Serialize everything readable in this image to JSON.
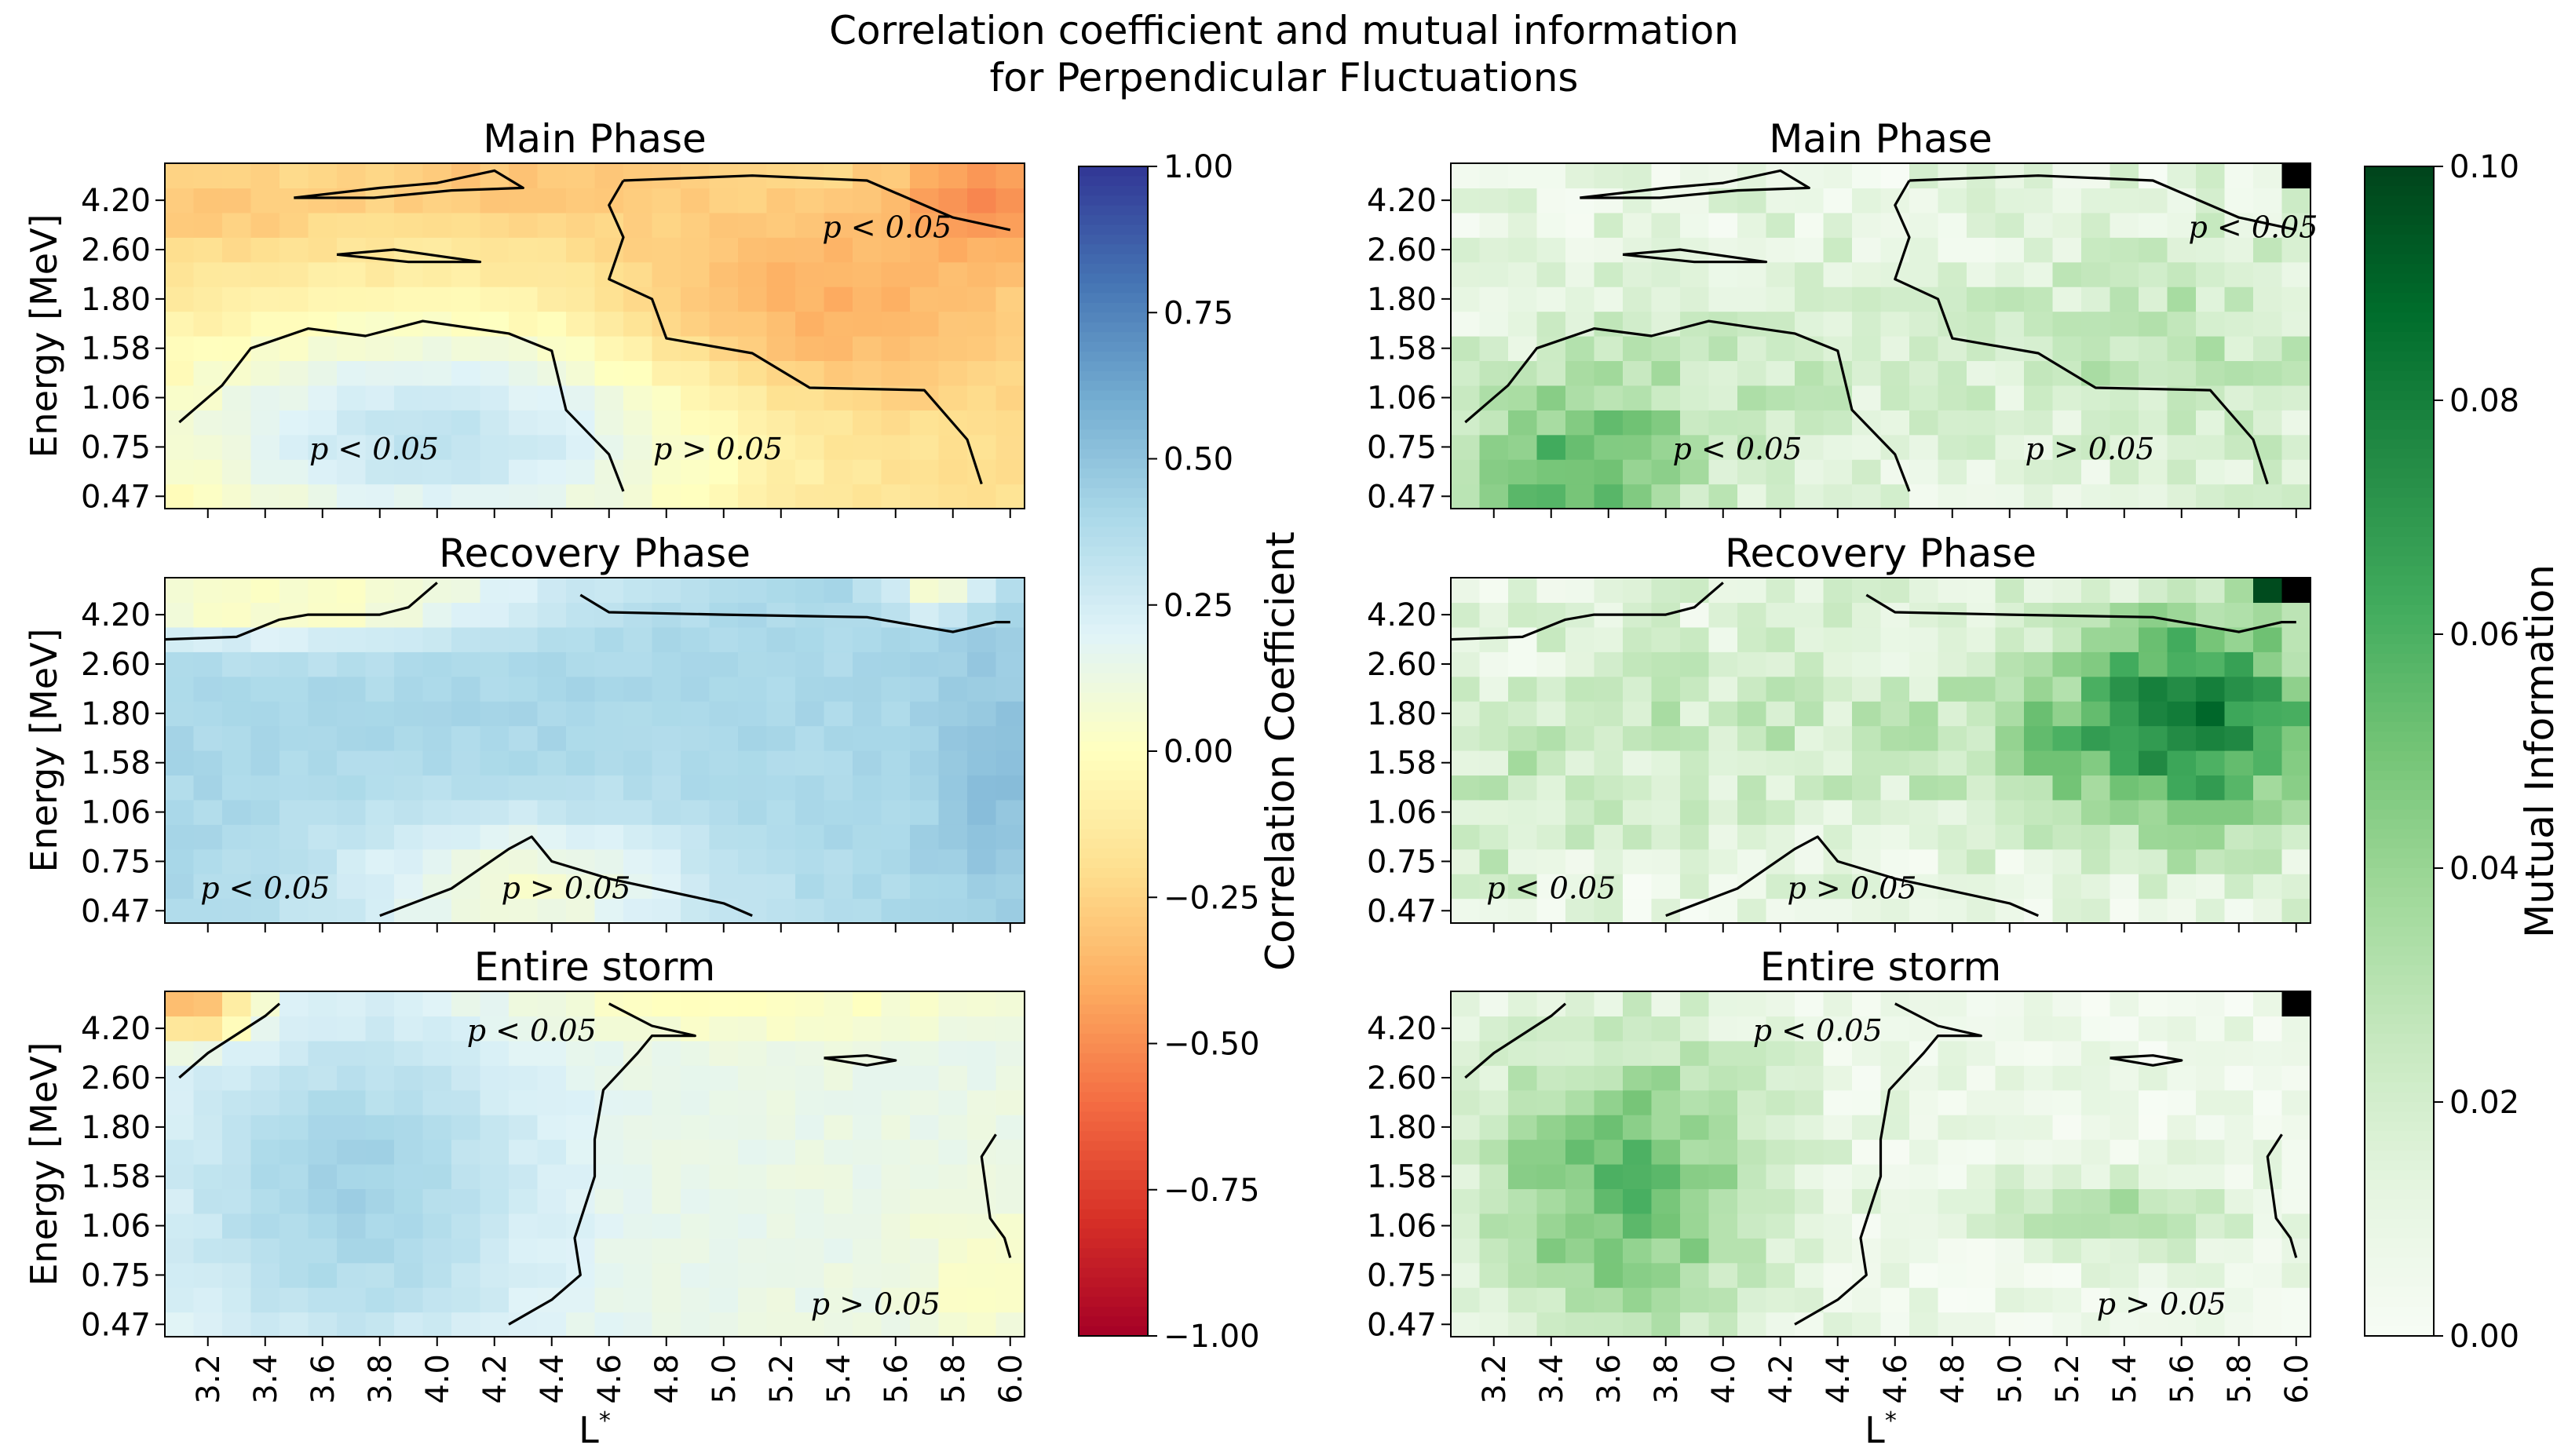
{
  "figure": {
    "title_line1": "Correlation coefficient and mutual information",
    "title_line2": "for Perpendicular Fluctuations"
  },
  "chart_data": [
    {
      "type": "heatmap",
      "metric": "correlation",
      "title": "Main Phase",
      "ylabel": "Energy [MeV]",
      "xlabel": "",
      "ytick_labels": [
        "4.20",
        "2.60",
        "1.80",
        "1.58",
        "1.06",
        "0.75",
        "0.47"
      ],
      "xlim": [
        3.05,
        6.05
      ],
      "energy_bins": 14,
      "lstar_bins": 30,
      "field": {
        "base": -0.2,
        "blobs": [
          {
            "cx": 4.0,
            "cy": 3.0,
            "sx": 0.75,
            "sy": 3.5,
            "a": 0.52
          },
          {
            "cx": 5.3,
            "cy": 8.0,
            "sx": 0.5,
            "sy": 3.0,
            "a": -0.22
          },
          {
            "cx": 5.9,
            "cy": 12.5,
            "sx": 0.2,
            "sy": 1.5,
            "a": -0.3
          },
          {
            "cx": 4.2,
            "cy": 13.0,
            "sx": 0.4,
            "sy": 1.0,
            "a": -0.12
          },
          {
            "cx": 3.2,
            "cy": 12.0,
            "sx": 0.3,
            "sy": 1.2,
            "a": -0.1
          }
        ]
      },
      "sig_regions": [
        {
          "label": "p < 0.05",
          "at": [
            3.78,
            2.0
          ]
        },
        {
          "label": "p > 0.05",
          "at": [
            4.98,
            2.0
          ]
        },
        {
          "label": "p < 0.05",
          "at": [
            5.57,
            11.0
          ]
        }
      ],
      "contours": [
        [
          [
            3.1,
            3.5
          ],
          [
            3.25,
            5.0
          ],
          [
            3.35,
            6.5
          ],
          [
            3.55,
            7.3
          ],
          [
            3.75,
            7.0
          ],
          [
            3.95,
            7.6
          ],
          [
            4.25,
            7.1
          ],
          [
            4.4,
            6.4
          ],
          [
            4.45,
            4.0
          ],
          [
            4.6,
            2.2
          ],
          [
            4.65,
            0.7
          ]
        ],
        [
          [
            4.65,
            13.3
          ],
          [
            4.6,
            12.3
          ],
          [
            4.65,
            11.0
          ],
          [
            4.6,
            9.3
          ],
          [
            4.75,
            8.5
          ],
          [
            4.8,
            6.9
          ],
          [
            5.1,
            6.3
          ],
          [
            5.3,
            4.9
          ],
          [
            5.7,
            4.8
          ],
          [
            5.85,
            2.8
          ],
          [
            5.9,
            1.0
          ]
        ],
        [
          [
            4.65,
            13.3
          ],
          [
            5.1,
            13.5
          ],
          [
            5.5,
            13.3
          ],
          [
            5.8,
            11.8
          ],
          [
            6.0,
            11.3
          ]
        ],
        [
          [
            3.5,
            12.6
          ],
          [
            3.8,
            13.0
          ],
          [
            4.0,
            13.2
          ],
          [
            4.2,
            13.7
          ],
          [
            4.3,
            13.0
          ],
          [
            4.05,
            12.9
          ],
          [
            3.78,
            12.6
          ],
          [
            3.5,
            12.6
          ]
        ],
        [
          [
            3.65,
            10.3
          ],
          [
            3.85,
            10.5
          ],
          [
            4.15,
            10.0
          ],
          [
            3.9,
            10.0
          ],
          [
            3.65,
            10.3
          ]
        ]
      ]
    },
    {
      "type": "heatmap",
      "metric": "mutual_information",
      "title": "Main Phase",
      "xlim": [
        3.05,
        6.05
      ],
      "energy_bins": 14,
      "lstar_bins": 30,
      "ytick_labels": [
        "4.20",
        "2.60",
        "1.80",
        "1.58",
        "1.06",
        "0.75",
        "0.47"
      ],
      "field": {
        "base": 0.006,
        "noise": 0.022,
        "seed": 3,
        "blobs": [
          {
            "cx": 3.45,
            "cy": 1.5,
            "sx": 0.35,
            "sy": 2.5,
            "a": 0.045
          },
          {
            "cx": 5.6,
            "cy": 6.5,
            "sx": 0.5,
            "sy": 3.5,
            "a": 0.018
          },
          {
            "cx": 4.0,
            "cy": 6.0,
            "sx": 0.5,
            "sy": 3.0,
            "a": 0.012
          }
        ]
      },
      "special_cells": [
        {
          "lstar": 5.975,
          "row": 13,
          "value": 0.1
        }
      ],
      "sig_regions": [
        {
          "label": "p < 0.05",
          "at": [
            4.05,
            2.0
          ]
        },
        {
          "label": "p > 0.05",
          "at": [
            5.28,
            2.0
          ]
        },
        {
          "label": "p < 0.05",
          "at": [
            5.85,
            11.0
          ]
        }
      ],
      "contours_from": 0
    },
    {
      "type": "heatmap",
      "metric": "correlation",
      "title": "Recovery Phase",
      "ylabel": "Energy [MeV]",
      "xlim": [
        3.05,
        6.05
      ],
      "energy_bins": 14,
      "lstar_bins": 30,
      "ytick_labels": [
        "4.20",
        "2.60",
        "1.80",
        "1.58",
        "1.06",
        "0.75",
        "0.47"
      ],
      "field": {
        "base": 0.4,
        "blobs": [
          {
            "cx": 4.3,
            "cy": 1.5,
            "sx": 0.45,
            "sy": 2.0,
            "a": -0.34
          },
          {
            "cx": 3.6,
            "cy": 13.0,
            "sx": 0.45,
            "sy": 1.2,
            "a": -0.36
          },
          {
            "cx": 3.1,
            "cy": 13.0,
            "sx": 0.2,
            "sy": 1.0,
            "a": -0.15
          },
          {
            "cx": 5.75,
            "cy": 13.5,
            "sx": 0.12,
            "sy": 0.8,
            "a": -0.35
          },
          {
            "cx": 5.95,
            "cy": 6.0,
            "sx": 0.15,
            "sy": 4.0,
            "a": 0.12
          },
          {
            "cx": 4.2,
            "cy": 13.5,
            "sx": 0.5,
            "sy": 0.8,
            "a": -0.08
          }
        ]
      },
      "sig_regions": [
        {
          "label": "p < 0.05",
          "at": [
            3.4,
            1.0
          ]
        },
        {
          "label": "p > 0.05",
          "at": [
            4.45,
            1.0
          ]
        }
      ],
      "contours": [
        [
          [
            3.05,
            11.5
          ],
          [
            3.3,
            11.6
          ],
          [
            3.45,
            12.3
          ],
          [
            3.55,
            12.5
          ],
          [
            3.8,
            12.5
          ],
          [
            3.9,
            12.8
          ],
          [
            4.0,
            13.8
          ]
        ],
        [
          [
            4.5,
            13.3
          ],
          [
            4.6,
            12.6
          ],
          [
            5.0,
            12.5
          ],
          [
            5.5,
            12.4
          ],
          [
            5.8,
            11.8
          ],
          [
            5.95,
            12.2
          ],
          [
            6.0,
            12.2
          ]
        ],
        [
          [
            3.8,
            0.3
          ],
          [
            4.05,
            1.4
          ],
          [
            4.25,
            3.0
          ],
          [
            4.33,
            3.5
          ],
          [
            4.4,
            2.5
          ],
          [
            4.6,
            1.8
          ],
          [
            5.0,
            0.8
          ],
          [
            5.1,
            0.3
          ]
        ]
      ]
    },
    {
      "type": "heatmap",
      "metric": "mutual_information",
      "title": "Recovery Phase",
      "xlim": [
        3.05,
        6.05
      ],
      "energy_bins": 14,
      "lstar_bins": 30,
      "ytick_labels": [
        "4.20",
        "2.60",
        "1.80",
        "1.58",
        "1.06",
        "0.75",
        "0.47"
      ],
      "field": {
        "base": 0.006,
        "noise": 0.024,
        "seed": 11,
        "blobs": [
          {
            "cx": 5.7,
            "cy": 8.5,
            "sx": 0.3,
            "sy": 3.5,
            "a": 0.06
          },
          {
            "cx": 5.2,
            "cy": 7.5,
            "sx": 0.4,
            "sy": 2.5,
            "a": 0.025
          },
          {
            "cx": 4.0,
            "cy": 8.0,
            "sx": 0.45,
            "sy": 3.0,
            "a": 0.015
          },
          {
            "cx": 3.2,
            "cy": 5.0,
            "sx": 0.25,
            "sy": 2.5,
            "a": 0.015
          }
        ]
      },
      "special_cells": [
        {
          "lstar": 5.975,
          "row": 13,
          "value": 0.1
        },
        {
          "lstar": 5.875,
          "row": 13,
          "value": 0.098
        }
      ],
      "sig_regions": [
        {
          "label": "p < 0.05",
          "at": [
            3.4,
            1.0
          ]
        },
        {
          "label": "p > 0.05",
          "at": [
            4.45,
            1.0
          ]
        }
      ],
      "contours_from": 2
    },
    {
      "type": "heatmap",
      "metric": "correlation",
      "title": "Entire storm",
      "ylabel": "Energy [MeV]",
      "xlabel": "L*",
      "xtick_labels": [
        "3.2",
        "3.4",
        "3.6",
        "3.8",
        "4.0",
        "4.2",
        "4.4",
        "4.6",
        "4.8",
        "5.0",
        "5.2",
        "5.4",
        "5.6",
        "5.8",
        "6.0"
      ],
      "xticks": [
        3.2,
        3.4,
        3.6,
        3.8,
        4.0,
        4.2,
        4.4,
        4.6,
        4.8,
        5.0,
        5.2,
        5.4,
        5.6,
        5.8,
        6.0
      ],
      "xlim": [
        3.05,
        6.05
      ],
      "energy_bins": 14,
      "lstar_bins": 30,
      "ytick_labels": [
        "4.20",
        "2.60",
        "1.80",
        "1.58",
        "1.06",
        "0.75",
        "0.47"
      ],
      "field": {
        "base": 0.14,
        "blobs": [
          {
            "cx": 3.7,
            "cy": 6.0,
            "sx": 0.45,
            "sy": 5.0,
            "a": 0.3
          },
          {
            "cx": 5.1,
            "cy": 13.3,
            "sx": 0.6,
            "sy": 0.8,
            "a": -0.14
          },
          {
            "cx": 3.15,
            "cy": 13.3,
            "sx": 0.15,
            "sy": 0.9,
            "a": -0.55
          },
          {
            "cx": 5.9,
            "cy": 2.5,
            "sx": 0.15,
            "sy": 2.0,
            "a": -0.12
          }
        ]
      },
      "sig_regions": [
        {
          "label": "p < 0.05",
          "at": [
            4.33,
            12.0
          ]
        },
        {
          "label": "p > 0.05",
          "at": [
            5.53,
            0.9
          ]
        }
      ],
      "contours": [
        [
          [
            3.1,
            10.5
          ],
          [
            3.2,
            11.5
          ],
          [
            3.4,
            13.0
          ],
          [
            3.45,
            13.5
          ]
        ],
        [
          [
            4.25,
            0.5
          ],
          [
            4.4,
            1.5
          ],
          [
            4.5,
            2.5
          ],
          [
            4.48,
            4.0
          ],
          [
            4.55,
            6.5
          ],
          [
            4.55,
            8.0
          ],
          [
            4.58,
            10.0
          ],
          [
            4.7,
            11.5
          ],
          [
            4.75,
            12.2
          ],
          [
            4.9,
            12.2
          ],
          [
            4.75,
            12.6
          ],
          [
            4.6,
            13.5
          ]
        ],
        [
          [
            5.35,
            11.3
          ],
          [
            5.5,
            11.4
          ],
          [
            5.6,
            11.2
          ],
          [
            5.5,
            11.0
          ],
          [
            5.35,
            11.3
          ]
        ],
        [
          [
            5.95,
            8.2
          ],
          [
            5.9,
            7.3
          ],
          [
            5.93,
            4.8
          ],
          [
            5.98,
            4.0
          ],
          [
            6.0,
            3.2
          ]
        ]
      ]
    },
    {
      "type": "heatmap",
      "metric": "mutual_information",
      "title": "Entire storm",
      "xlabel": "L*",
      "xtick_labels": [
        "3.2",
        "3.4",
        "3.6",
        "3.8",
        "4.0",
        "4.2",
        "4.4",
        "4.6",
        "4.8",
        "5.0",
        "5.2",
        "5.4",
        "5.6",
        "5.8",
        "6.0"
      ],
      "xticks": [
        3.2,
        3.4,
        3.6,
        3.8,
        4.0,
        4.2,
        4.4,
        4.6,
        4.8,
        5.0,
        5.2,
        5.4,
        5.6,
        5.8,
        6.0
      ],
      "xlim": [
        3.05,
        6.05
      ],
      "energy_bins": 14,
      "lstar_bins": 30,
      "ytick_labels": [
        "4.20",
        "2.60",
        "1.80",
        "1.58",
        "1.06",
        "0.75",
        "0.47"
      ],
      "field": {
        "base": 0.003,
        "noise": 0.018,
        "seed": 21,
        "blobs": [
          {
            "cx": 3.65,
            "cy": 6.0,
            "sx": 0.38,
            "sy": 4.5,
            "a": 0.048
          },
          {
            "cx": 5.4,
            "cy": 5.0,
            "sx": 0.3,
            "sy": 1.2,
            "a": 0.03
          }
        ]
      },
      "special_cells": [
        {
          "lstar": 5.975,
          "row": 13,
          "value": 0.1
        }
      ],
      "sig_regions": [
        {
          "label": "p < 0.05",
          "at": [
            4.33,
            12.0
          ]
        },
        {
          "label": "p > 0.05",
          "at": [
            5.53,
            0.9
          ]
        }
      ],
      "contours_from": 4
    }
  ],
  "colorbars": {
    "correlation": {
      "label": "Correlation Coefficient",
      "range": [
        -1.0,
        1.0
      ],
      "tick_labels": [
        "1.00",
        "0.75",
        "0.50",
        "0.25",
        "0.00",
        "−0.25",
        "−0.50",
        "−0.75",
        "−1.00"
      ],
      "tick_values": [
        1.0,
        0.75,
        0.5,
        0.25,
        0.0,
        -0.25,
        -0.5,
        -0.75,
        -1.0
      ],
      "colors": [
        "#a50026",
        "#d73027",
        "#f46d43",
        "#fdae61",
        "#fee090",
        "#ffffbf",
        "#e0f3f8",
        "#abd9e9",
        "#74add1",
        "#4575b4",
        "#313695"
      ]
    },
    "mutual_information": {
      "label": "Mutual Information",
      "range": [
        0.0,
        0.1
      ],
      "tick_labels": [
        "0.10",
        "0.08",
        "0.06",
        "0.04",
        "0.02",
        "0.00"
      ],
      "tick_values": [
        0.1,
        0.08,
        0.06,
        0.04,
        0.02,
        0.0
      ],
      "colors": [
        "#f7fcf5",
        "#e5f5e0",
        "#c7e9c0",
        "#a1d99b",
        "#74c476",
        "#41ab5d",
        "#238b45",
        "#006d2c",
        "#00441b"
      ],
      "overflow_color": "#000000"
    }
  }
}
